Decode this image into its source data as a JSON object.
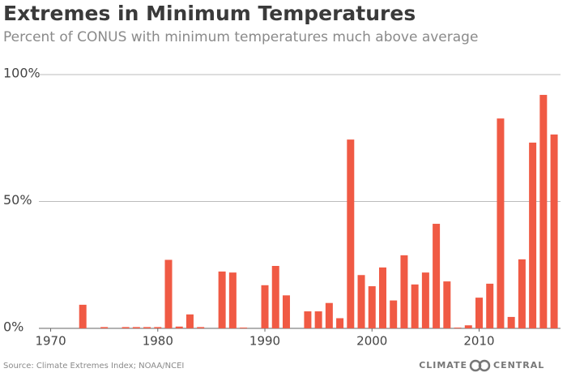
{
  "chart_data": {
    "type": "bar",
    "title": "Extremes in Minimum Temperatures",
    "subtitle": "Percent of CONUS with minimum temperatures much above average",
    "source": "Source: Climate Extremes Index; NOAA/NCEI",
    "logo": [
      "CLIMATE",
      "CENTRAL"
    ],
    "x": [
      1970,
      1971,
      1972,
      1973,
      1974,
      1975,
      1976,
      1977,
      1978,
      1979,
      1980,
      1981,
      1982,
      1983,
      1984,
      1985,
      1986,
      1987,
      1988,
      1989,
      1990,
      1991,
      1992,
      1993,
      1994,
      1995,
      1996,
      1997,
      1998,
      1999,
      2000,
      2001,
      2002,
      2003,
      2004,
      2005,
      2006,
      2007,
      2008,
      2009,
      2010,
      2011,
      2012,
      2013,
      2014,
      2015,
      2016,
      2017
    ],
    "values": [
      0,
      0,
      0,
      9.3,
      0,
      0.5,
      0,
      0.5,
      0.5,
      0.5,
      0.5,
      27,
      0.7,
      5.5,
      0.5,
      0,
      22.4,
      22,
      0.3,
      0,
      17,
      24.6,
      13,
      0,
      6.7,
      6.7,
      10,
      4,
      74.4,
      21,
      16.6,
      24,
      11,
      28.8,
      17.3,
      22,
      41.2,
      18.5,
      0.3,
      1.2,
      12.1,
      17.6,
      82.7,
      4.5,
      27.2,
      73.2,
      92,
      76.4
    ],
    "color": "#f05a44",
    "xlim": [
      1968.9,
      2017.6
    ],
    "xticks": [
      1970,
      1980,
      1990,
      2000,
      2010
    ],
    "ylim": [
      0,
      100
    ],
    "yticks": [
      {
        "value": 0,
        "label": "0%"
      },
      {
        "value": 50,
        "label": "50%"
      },
      {
        "value": 100,
        "label": "100%"
      }
    ],
    "grid": true
  }
}
